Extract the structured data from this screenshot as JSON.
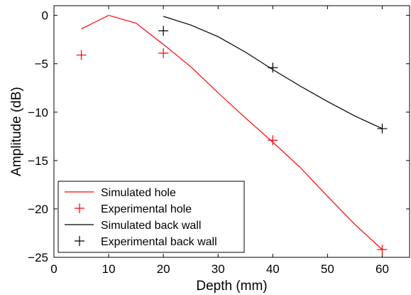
{
  "chart_data": {
    "type": "line",
    "title": "",
    "xlabel": "Depth (mm)",
    "ylabel": "Amplitude (dB)",
    "xlim": [
      0,
      65
    ],
    "ylim": [
      -25,
      1
    ],
    "xticks": [
      0,
      10,
      20,
      30,
      40,
      50,
      60
    ],
    "yticks": [
      0,
      -5,
      -10,
      -15,
      -20,
      -25
    ],
    "grid": false,
    "legend_position": "bottom-left",
    "series": [
      {
        "name": "Simulated hole",
        "style": "line",
        "color": "#ff0000",
        "x": [
          5,
          10,
          15,
          20,
          25,
          30,
          35,
          40,
          45,
          50,
          55,
          60
        ],
        "y": [
          -1.4,
          0,
          -0.8,
          -3.0,
          -5.3,
          -8.0,
          -10.6,
          -13.1,
          -15.7,
          -18.7,
          -21.6,
          -24.2
        ]
      },
      {
        "name": "Experimental hole",
        "style": "marker",
        "marker": "+",
        "color": "#ff0000",
        "x": [
          5,
          20,
          40,
          60
        ],
        "y": [
          -4.1,
          -3.9,
          -12.9,
          -24.2
        ]
      },
      {
        "name": "Simulated back wall",
        "style": "line",
        "color": "#000000",
        "x": [
          20,
          25,
          30,
          35,
          40,
          45,
          50,
          55,
          60
        ],
        "y": [
          -0.1,
          -1.0,
          -2.2,
          -3.8,
          -5.6,
          -7.3,
          -8.9,
          -10.4,
          -11.7
        ]
      },
      {
        "name": "Experimental back wall",
        "style": "marker",
        "marker": "+",
        "color": "#000000",
        "x": [
          20,
          40,
          60
        ],
        "y": [
          -1.6,
          -5.4,
          -11.7
        ]
      }
    ]
  }
}
